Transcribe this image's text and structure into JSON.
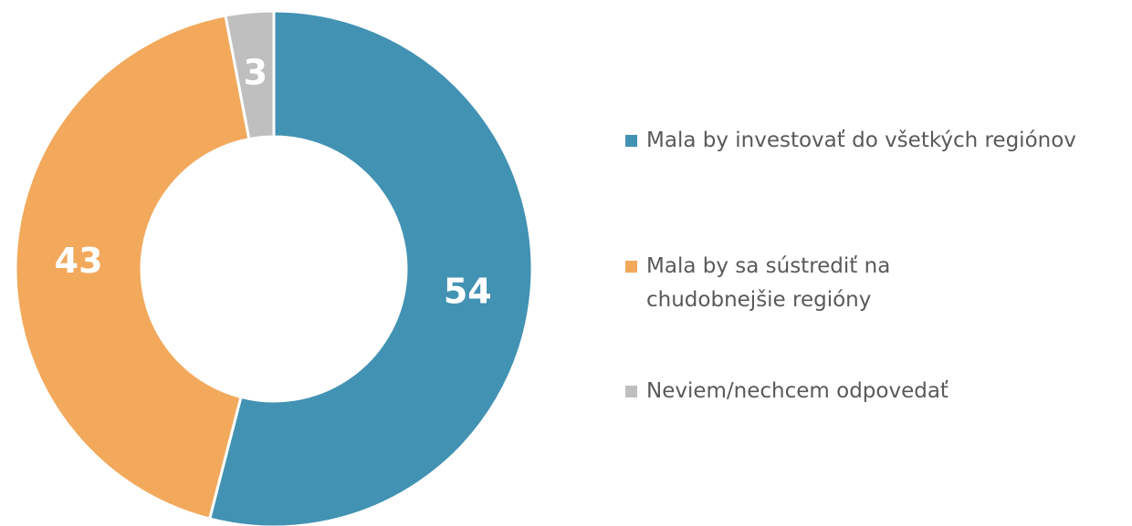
{
  "chart_data": {
    "type": "donut",
    "categories": [
      "Mala by investovať do všetkých regiónov",
      "Mala by sa sústrediť na chudobnejšie regióny",
      "Neviem/nechcem odpovedať"
    ],
    "values": [
      54,
      43,
      3
    ],
    "colors": [
      "#4292b3",
      "#f2a95c",
      "#bfbfbf"
    ],
    "legend": "right"
  }
}
